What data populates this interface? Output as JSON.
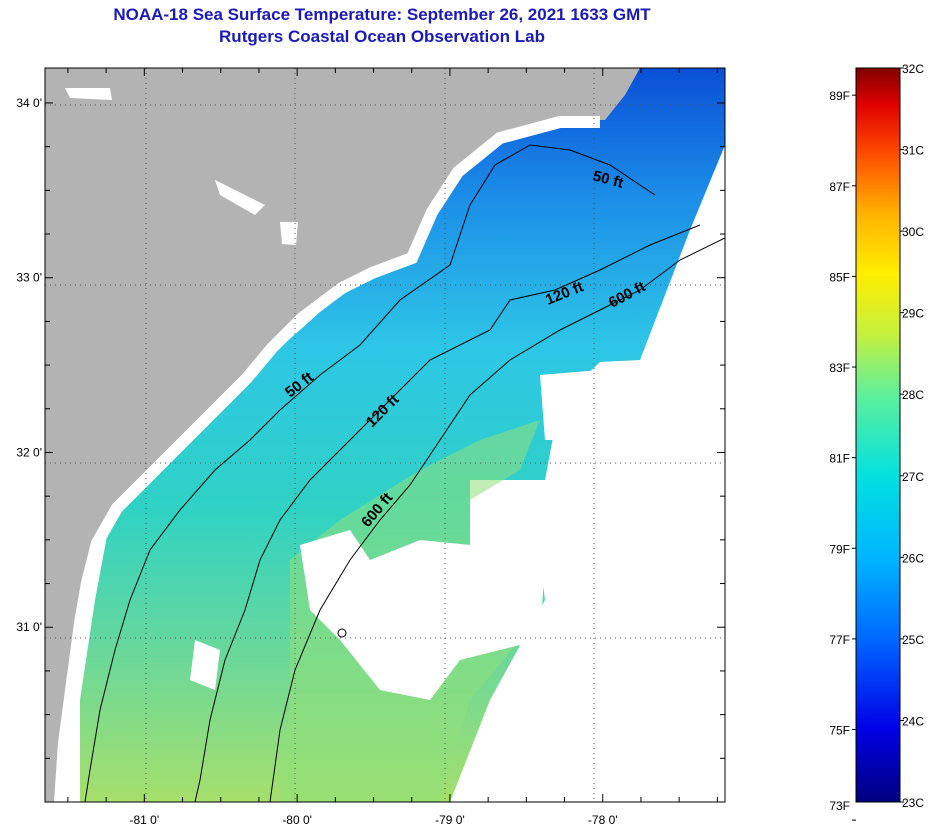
{
  "title": {
    "line1": "NOAA-18 Sea Surface Temperature:  September 26, 2021 1633 GMT",
    "line2": "Rutgers Coastal Ocean Observation Lab"
  },
  "map": {
    "lon_range": [
      -81.65,
      -77.2
    ],
    "lat_range": [
      30.0,
      34.2
    ],
    "lon_ticks": [
      {
        "value": -81,
        "label": "-81 0'"
      },
      {
        "value": -80,
        "label": "-80 0'"
      },
      {
        "value": -79,
        "label": "-79 0'"
      },
      {
        "value": -78,
        "label": "-78 0'"
      }
    ],
    "lat_ticks": [
      {
        "value": 34,
        "label": "34 0'"
      },
      {
        "value": 33,
        "label": "33 0'"
      },
      {
        "value": 32,
        "label": "32 0'"
      },
      {
        "value": 31,
        "label": "31 0'"
      }
    ],
    "contour_labels": {
      "c50_north": "50 ft",
      "c50_south": "50 ft",
      "c120_north": "120 ft",
      "c120_south": "120 ft",
      "c600_north": "600 ft",
      "c600_south": "600 ft"
    },
    "land_color": "#b3b3b3",
    "no_data_color": "#ffffff"
  },
  "colorbar": {
    "min_c": 23,
    "max_c": 32,
    "celsius_labels": [
      "32C",
      "31C",
      "30C",
      "29C",
      "28C",
      "27C",
      "26C",
      "25C",
      "24C",
      "23C"
    ],
    "fahrenheit_labels": [
      "89F",
      "87F",
      "85F",
      "83F",
      "81F",
      "79F",
      "77F",
      "75F",
      "73F"
    ],
    "fahrenheit_values": [
      89,
      87,
      85,
      83,
      81,
      79,
      77,
      75,
      73
    ]
  }
}
